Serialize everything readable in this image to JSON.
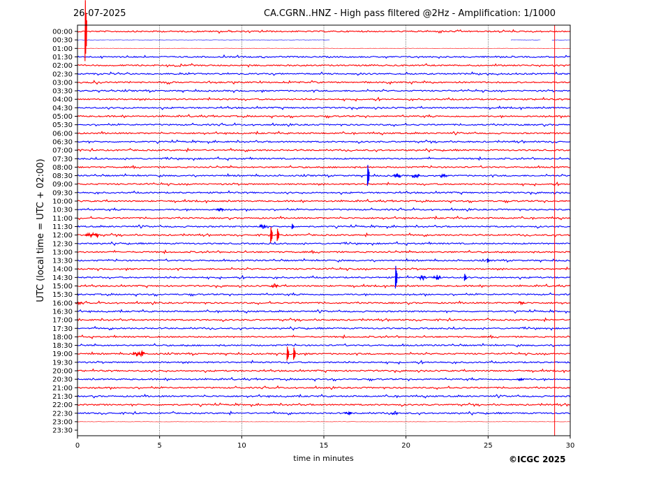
{
  "header": {
    "date": "26-07-2025",
    "title": "CA.CGRN..HNZ - High pass filtered @2Hz - Amplification: 1/1000"
  },
  "footer": {
    "copyright": "©ICGC 2025"
  },
  "chart_data": {
    "type": "line",
    "xlabel": "time in minutes",
    "ylabel": "UTC (local time = UTC + 02:00)",
    "xlim": [
      0,
      30
    ],
    "x_ticks": [
      "0",
      "5",
      "10",
      "15",
      "20",
      "25",
      "30"
    ],
    "x_tick_values": [
      0,
      5,
      10,
      15,
      20,
      25,
      30
    ],
    "grid": "vertical dotted at every 5 minutes",
    "row_labels": [
      "00:00",
      "00:30",
      "01:00",
      "01:30",
      "02:00",
      "02:30",
      "03:00",
      "03:30",
      "04:00",
      "04:30",
      "05:00",
      "05:30",
      "06:00",
      "06:30",
      "07:00",
      "07:30",
      "08:00",
      "08:30",
      "09:00",
      "09:30",
      "10:00",
      "10:30",
      "11:00",
      "11:30",
      "12:00",
      "12:30",
      "13:00",
      "13:30",
      "14:00",
      "14:30",
      "15:00",
      "15:30",
      "16:00",
      "16:30",
      "17:00",
      "17:30",
      "18:00",
      "18:30",
      "19:00",
      "19:30",
      "20:00",
      "20:30",
      "21:00",
      "21:30",
      "22:00",
      "22:30",
      "23:00",
      "23:30"
    ],
    "trace_colors": [
      "#ff0000",
      "#0000ff"
    ],
    "trace_extents": {
      "00:30": [
        [
          0,
          15.4
        ],
        [
          26.4,
          28.2
        ],
        [
          28.9,
          30
        ]
      ],
      "01:00": [
        [
          0,
          30
        ]
      ],
      "23:00": [
        [
          0,
          30
        ]
      ],
      "23:30": [
        [
          0,
          0
        ]
      ]
    },
    "events": [
      {
        "row": "00:00",
        "x": 0.5,
        "type": "spike",
        "amplitude": 3.5
      },
      {
        "row": "08:30",
        "x": 17.7,
        "type": "spike",
        "amplitude": 1.2
      },
      {
        "row": "08:30",
        "x": 19.5,
        "type": "burst",
        "amplitude": 0.3
      },
      {
        "row": "08:30",
        "x": 20.6,
        "type": "burst",
        "amplitude": 0.3
      },
      {
        "row": "08:30",
        "x": 22.3,
        "type": "burst",
        "amplitude": 0.25
      },
      {
        "row": "10:30",
        "x": 8.7,
        "type": "burst",
        "amplitude": 0.2
      },
      {
        "row": "11:30",
        "x": 11.3,
        "type": "burst",
        "amplitude": 0.3
      },
      {
        "row": "11:30",
        "x": 13.1,
        "type": "spike",
        "amplitude": 0.3
      },
      {
        "row": "12:00",
        "x": 0.7,
        "type": "burst",
        "amplitude": 0.4
      },
      {
        "row": "12:00",
        "x": 1.1,
        "type": "burst",
        "amplitude": 0.4
      },
      {
        "row": "12:00",
        "x": 11.8,
        "type": "spike",
        "amplitude": 0.9
      },
      {
        "row": "12:00",
        "x": 12.2,
        "type": "spike",
        "amplitude": 0.7
      },
      {
        "row": "14:30",
        "x": 19.4,
        "type": "spike",
        "amplitude": 1.3
      },
      {
        "row": "14:30",
        "x": 21.0,
        "type": "burst",
        "amplitude": 0.35
      },
      {
        "row": "14:30",
        "x": 21.9,
        "type": "burst",
        "amplitude": 0.35
      },
      {
        "row": "14:30",
        "x": 23.6,
        "type": "spike",
        "amplitude": 0.4
      },
      {
        "row": "15:00",
        "x": 12.0,
        "type": "burst",
        "amplitude": 0.3
      },
      {
        "row": "16:00",
        "x": 0.1,
        "type": "burst",
        "amplitude": 0.2
      },
      {
        "row": "16:00",
        "x": 27.0,
        "type": "burst",
        "amplitude": 0.2
      },
      {
        "row": "19:00",
        "x": 3.6,
        "type": "burst",
        "amplitude": 0.35
      },
      {
        "row": "19:00",
        "x": 3.9,
        "type": "burst",
        "amplitude": 0.45
      },
      {
        "row": "19:00",
        "x": 12.8,
        "type": "spike",
        "amplitude": 0.8
      },
      {
        "row": "19:00",
        "x": 13.2,
        "type": "spike",
        "amplitude": 0.7
      },
      {
        "row": "22:30",
        "x": 16.5,
        "type": "burst",
        "amplitude": 0.2
      },
      {
        "row": "22:30",
        "x": 19.3,
        "type": "burst",
        "amplitude": 0.3
      },
      {
        "row": "13:30",
        "x": 25.0,
        "type": "spike",
        "amplitude": 0.25
      },
      {
        "row": "20:30",
        "x": 27.0,
        "type": "burst",
        "amplitude": 0.2
      }
    ],
    "vertical_line": {
      "x": 29.05,
      "color": "#ff0000"
    }
  }
}
